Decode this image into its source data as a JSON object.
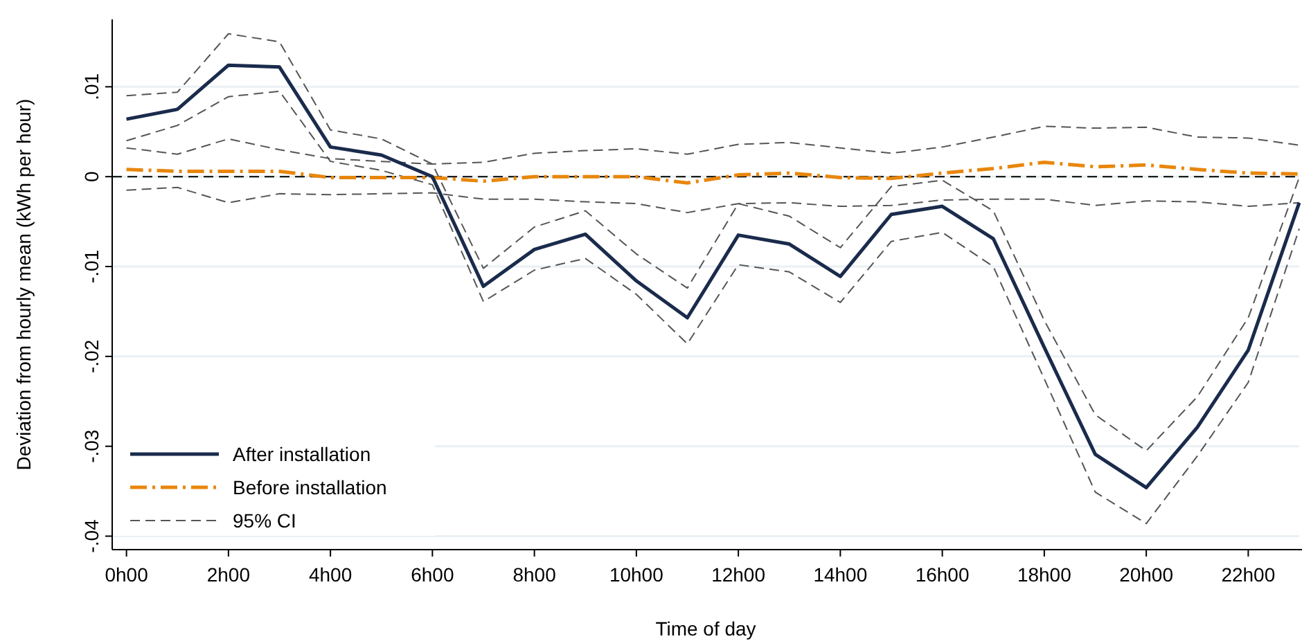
{
  "chart_data": {
    "type": "line",
    "xlabel": "Time of day",
    "ylabel": "Deviation from hourly mean (kWh per hour)",
    "categories": [
      "0h00",
      null,
      "2h00",
      null,
      "4h00",
      null,
      "6h00",
      null,
      "8h00",
      null,
      "10h00",
      null,
      "12h00",
      null,
      "14h00",
      null,
      "16h00",
      null,
      "18h00",
      null,
      "20h00",
      null,
      "22h00",
      null
    ],
    "ylim": [
      -0.0415,
      0.0175
    ],
    "yticks": [
      {
        "value": -0.04,
        "label": "-.04"
      },
      {
        "value": -0.03,
        "label": "-.03"
      },
      {
        "value": -0.02,
        "label": "-.02"
      },
      {
        "value": -0.01,
        "label": "-.01"
      },
      0,
      {
        "value": 0.01,
        "label": ".01"
      }
    ],
    "grid": "y",
    "legend": "bottom left",
    "ref_lines": [
      {
        "axis": "y",
        "value": 0,
        "color": "#000000",
        "line_style": "dashed"
      }
    ],
    "series": [
      {
        "name": "After installation",
        "color": "#1a2b4c",
        "line_style": "solid",
        "values": [
          0.0064,
          0.0075,
          0.0124,
          0.0122,
          0.0033,
          0.0024,
          0.0,
          -0.0122,
          -0.0081,
          -0.0064,
          -0.0116,
          -0.0157,
          -0.0065,
          -0.0075,
          -0.0111,
          -0.0042,
          -0.0033,
          -0.0069,
          -0.019,
          -0.0309,
          -0.0346,
          -0.0279,
          -0.0193,
          -0.0029
        ]
      },
      {
        "name": "Before installation",
        "color": "#e8860c",
        "line_style": "dashdot",
        "values": [
          0.0008,
          0.0006,
          0.0006,
          0.0006,
          -0.0001,
          -0.0001,
          -0.0001,
          -0.0005,
          0,
          0,
          0,
          -0.0007,
          0.0002,
          0.0004,
          -0.0001,
          -0.0002,
          0.0004,
          0.0009,
          0.0016,
          0.0011,
          0.0013,
          0.0008,
          0.0004,
          0.0003
        ]
      },
      {
        "name": "95% CI",
        "color": "#555555",
        "line_style": "dashed",
        "values": [
          0.009,
          0.0094,
          0.0159,
          0.015,
          0.0052,
          0.0042,
          0.0014,
          -0.0102,
          -0.0056,
          -0.0038,
          -0.0086,
          -0.0124,
          -0.003,
          -0.0044,
          -0.0079,
          -0.0011,
          -0.0004,
          -0.0038,
          -0.016,
          -0.0265,
          -0.0305,
          -0.0245,
          -0.0157,
          -0.0001
        ]
      },
      {
        "color": "#555555",
        "line_style": "dashed",
        "values": [
          0.004,
          0.0057,
          0.0089,
          0.0095,
          0.0017,
          0.0007,
          -0.0009,
          -0.0139,
          -0.0104,
          -0.0091,
          -0.0131,
          -0.0186,
          -0.0098,
          -0.0106,
          -0.014,
          -0.0072,
          -0.0062,
          -0.01,
          -0.0225,
          -0.0351,
          -0.0386,
          -0.0311,
          -0.0229,
          -0.0058
        ]
      },
      {
        "color": "#555555",
        "line_style": "dashed",
        "values": [
          0.0032,
          0.0025,
          0.0042,
          0.003,
          0.002,
          0.0017,
          0.0014,
          0.0016,
          0.0026,
          0.0029,
          0.0031,
          0.0025,
          0.0036,
          0.0038,
          0.0032,
          0.0026,
          0.0033,
          0.0044,
          0.0056,
          0.0054,
          0.0055,
          0.0044,
          0.0043,
          0.0035
        ]
      },
      {
        "color": "#555555",
        "line_style": "dashed",
        "values": [
          -0.0015,
          -0.0012,
          -0.0029,
          -0.0019,
          -0.002,
          -0.0019,
          -0.0018,
          -0.0025,
          -0.0025,
          -0.0028,
          -0.003,
          -0.004,
          -0.003,
          -0.0029,
          -0.0033,
          -0.0032,
          -0.0026,
          -0.0025,
          -0.0025,
          -0.0032,
          -0.0027,
          -0.0028,
          -0.0033,
          -0.0029
        ]
      }
    ]
  }
}
